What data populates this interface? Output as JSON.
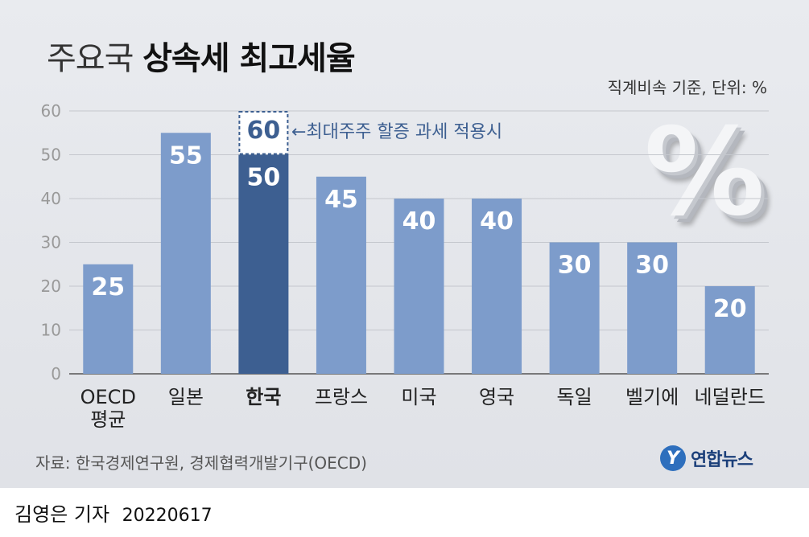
{
  "title": {
    "light": "주요국",
    "bold": "상속세 최고세율"
  },
  "unit_note": "직계비속 기준, 단위: %",
  "annotation": "←최대주주 할증 과세 적용시",
  "decor_symbol": "%",
  "source": "자료: 한국경제연구원, 경제협력개발기구(OECD)",
  "logo": {
    "mark": "Y",
    "text": "연합뉴스"
  },
  "byline": {
    "author": "김영은 기자",
    "date": "20220617"
  },
  "colors": {
    "bar": "#7d9ccb",
    "highlight": "#3d5f91",
    "highlight_cap": "#3d5f91"
  },
  "chart_data": {
    "type": "bar",
    "categories": [
      [
        "OECD",
        "평균"
      ],
      [
        "일본"
      ],
      [
        "한국"
      ],
      [
        "프랑스"
      ],
      [
        "미국"
      ],
      [
        "영국"
      ],
      [
        "독일"
      ],
      [
        "벨기에"
      ],
      [
        "네덜란드"
      ]
    ],
    "values": [
      25,
      55,
      50,
      45,
      40,
      40,
      30,
      30,
      20
    ],
    "value_labels": [
      "25",
      "55",
      "50",
      "45",
      "40",
      "40",
      "30",
      "30",
      "20"
    ],
    "highlight_index": 2,
    "highlight_extra": {
      "value": 60,
      "label": "60"
    },
    "yticks": [
      "0",
      "10",
      "20",
      "30",
      "40",
      "50",
      "60"
    ],
    "ylim": [
      0,
      60
    ],
    "grid": true
  }
}
